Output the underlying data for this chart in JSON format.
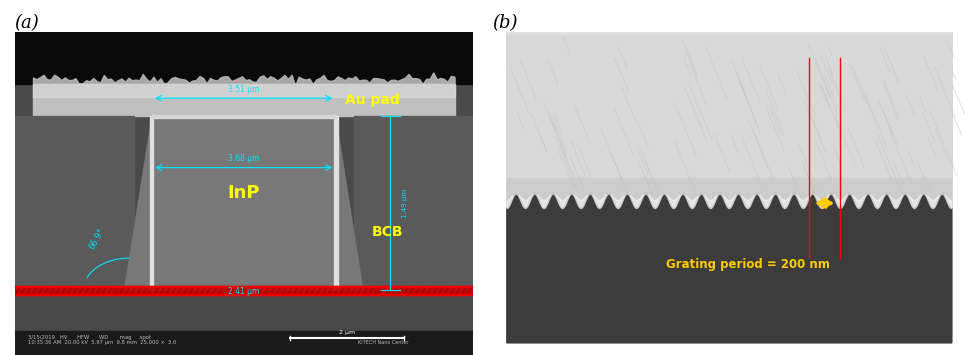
{
  "fig_width": 9.75,
  "fig_height": 3.55,
  "bg_color": "#ffffff",
  "label_a": "(a)",
  "label_b": "(b)",
  "label_fontsize": 13,
  "panel_a": {
    "label_InP": "InP",
    "label_AuPad": "Au pad",
    "label_BCB": "BCB",
    "label_angle": "66.9°",
    "dim_top": "3.51 μm",
    "dim_mid": "3.68 μm",
    "dim_right": "1.49 μm",
    "dim_bot": "2.41 μm",
    "yellow": "#ffff00",
    "cyan": "#00e5ff",
    "red": "#ff0000"
  },
  "panel_b": {
    "label": "Grating period = 200 nm",
    "label_color": "#ffcc00",
    "red_line_color": "#ff0000",
    "arrow_color": "#ffcc00",
    "dark_bg": "#383838",
    "grating_light": "#d0d0d0"
  }
}
